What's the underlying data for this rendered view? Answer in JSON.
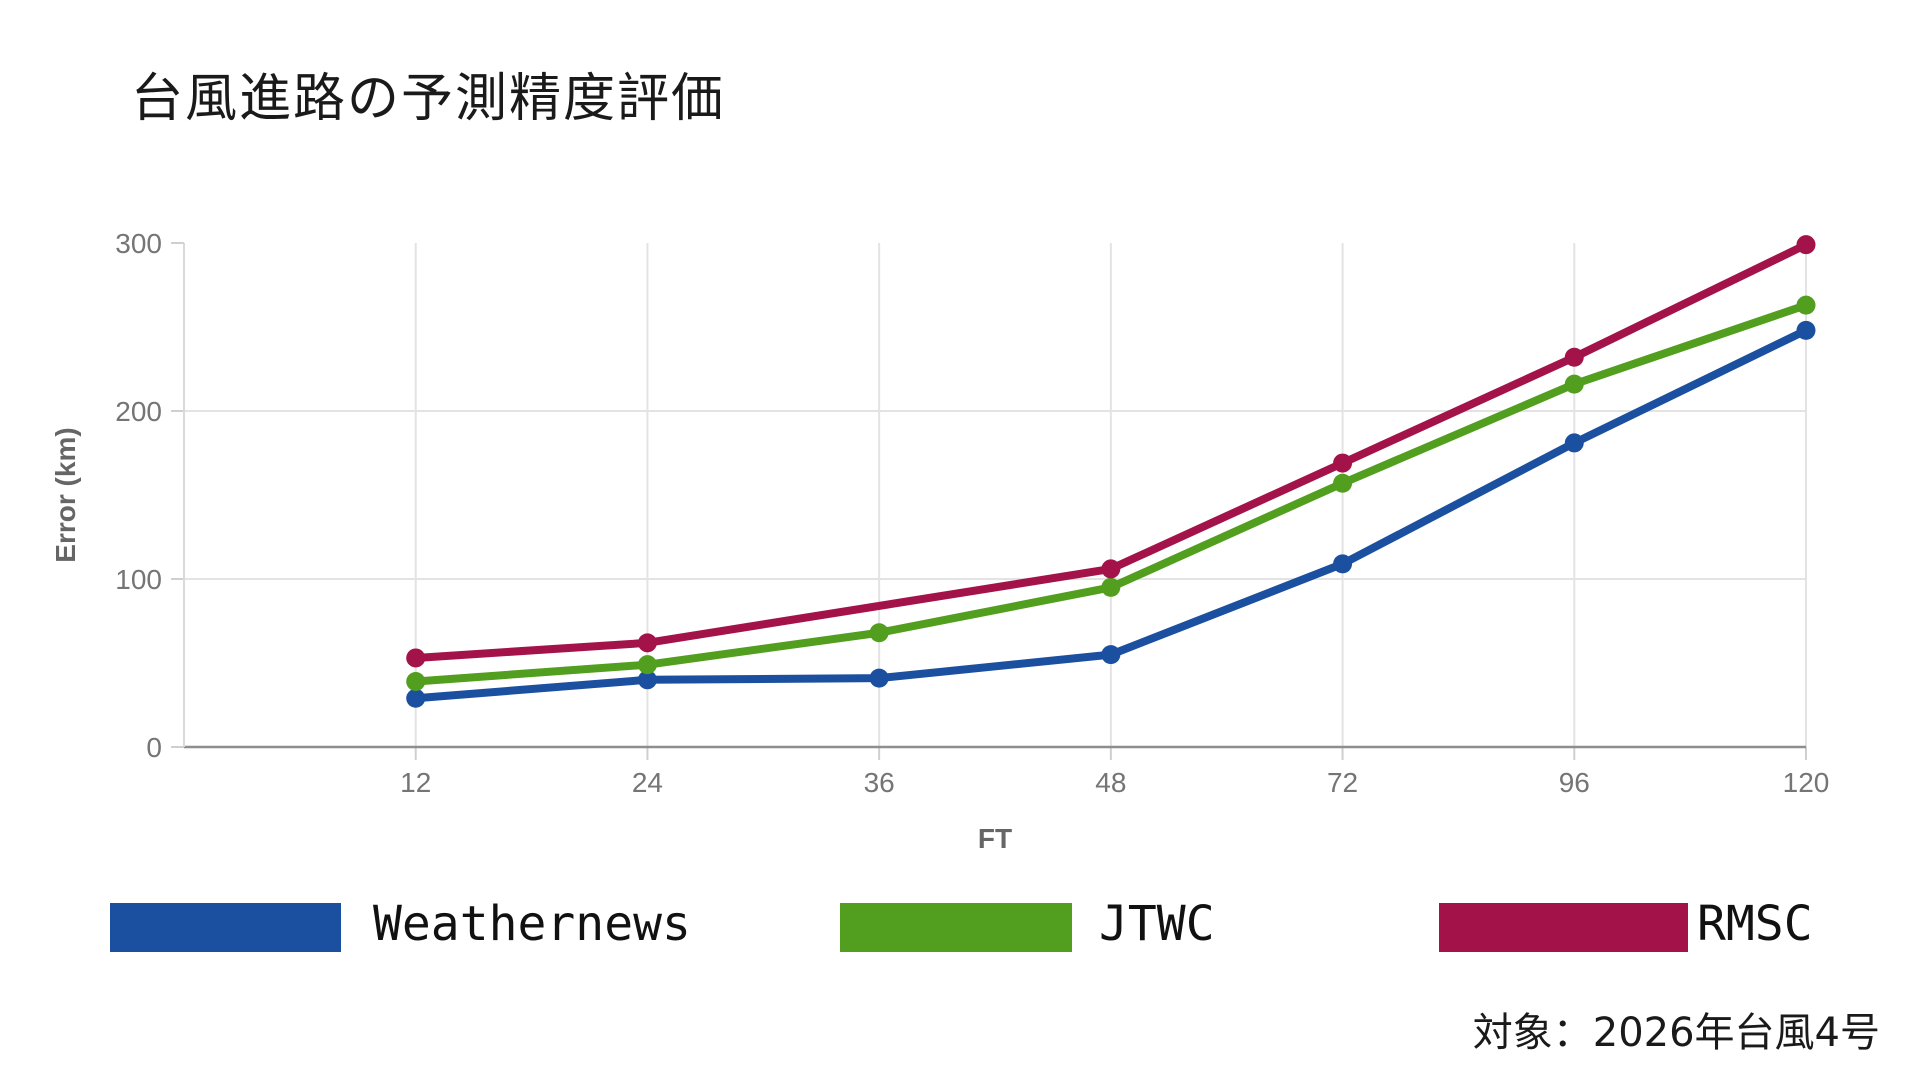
{
  "page": {
    "title": "台風進路の予測精度評価",
    "footnote": "対象：2026年台風4号",
    "background": "#ffffff"
  },
  "chart_data": {
    "type": "line",
    "title": "台風進路の予測精度評価",
    "xlabel": "FT",
    "ylabel": "Error (km)",
    "x_scale": "categorical",
    "categories": [
      "12",
      "24",
      "36",
      "48",
      "72",
      "96",
      "120"
    ],
    "y_ticks": [
      0,
      100,
      200,
      300
    ],
    "ylim": [
      0,
      300
    ],
    "grid": true,
    "legend_position": "bottom",
    "annotation": "対象：2026年台風4号",
    "series": [
      {
        "name": "Weathernews",
        "color": "#1b4fa0",
        "values": [
          29,
          40,
          41,
          55,
          109,
          181,
          248
        ]
      },
      {
        "name": "JTWC",
        "color": "#529e1e",
        "values": [
          39,
          49,
          68,
          95,
          157,
          216,
          263
        ]
      },
      {
        "name": "RMSC",
        "color": "#a31349",
        "values": [
          53,
          62,
          null,
          106,
          169,
          232,
          299
        ]
      }
    ],
    "style": {
      "tick_label_color": "#757575",
      "axis_title_color": "#666666",
      "grid_color": "#e3e3e3",
      "zero_axis_color": "#8e8e8e"
    }
  }
}
